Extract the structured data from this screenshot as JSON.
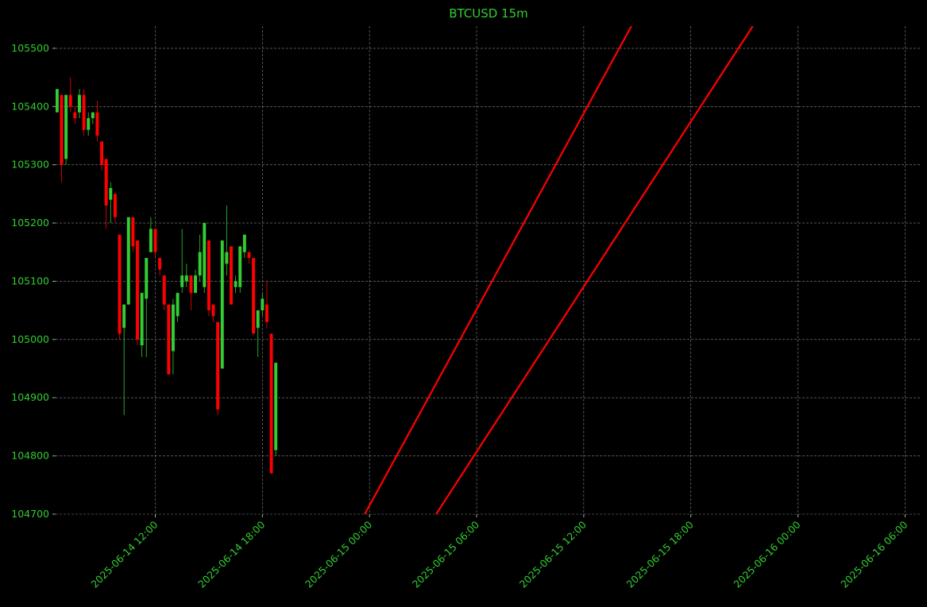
{
  "chart_data": {
    "type": "candlestick",
    "title": "BTCUSD 15m",
    "x": [
      "2025-06-14 06:30",
      "2025-06-14 06:45",
      "2025-06-14 07:00",
      "2025-06-14 07:15",
      "2025-06-14 07:30",
      "2025-06-14 07:45",
      "2025-06-14 08:00",
      "2025-06-14 08:15",
      "2025-06-14 08:30",
      "2025-06-14 08:45",
      "2025-06-14 09:00",
      "2025-06-14 09:15",
      "2025-06-14 09:30",
      "2025-06-14 09:45",
      "2025-06-14 10:00",
      "2025-06-14 10:15",
      "2025-06-14 10:30",
      "2025-06-14 10:45",
      "2025-06-14 11:00",
      "2025-06-14 11:15",
      "2025-06-14 11:30",
      "2025-06-14 11:45",
      "2025-06-14 12:00",
      "2025-06-14 12:15",
      "2025-06-14 12:30",
      "2025-06-14 12:45",
      "2025-06-14 13:00",
      "2025-06-14 13:15",
      "2025-06-14 13:30",
      "2025-06-14 13:45",
      "2025-06-14 14:00",
      "2025-06-14 14:15",
      "2025-06-14 14:30",
      "2025-06-14 14:45",
      "2025-06-14 15:00",
      "2025-06-14 15:15",
      "2025-06-14 15:30",
      "2025-06-14 15:45",
      "2025-06-14 16:00",
      "2025-06-14 16:15",
      "2025-06-14 16:30",
      "2025-06-14 16:45",
      "2025-06-14 17:00",
      "2025-06-14 17:15",
      "2025-06-14 17:30",
      "2025-06-14 17:45",
      "2025-06-14 18:00",
      "2025-06-14 18:15",
      "2025-06-14 18:30",
      "2025-06-14 18:45"
    ],
    "open": [
      105390,
      105420,
      105310,
      105420,
      105390,
      105390,
      105420,
      105360,
      105380,
      105390,
      105340,
      105310,
      105240,
      105250,
      105180,
      105020,
      105060,
      105210,
      105170,
      104990,
      105070,
      105150,
      105190,
      105140,
      105110,
      105060,
      104980,
      105040,
      105090,
      105100,
      105110,
      105080,
      105110,
      105090,
      105170,
      105060,
      105030,
      104950,
      105130,
      105160,
      105090,
      105090,
      105150,
      105150,
      105140,
      105020,
      105050,
      105060,
      105010,
      104810
    ],
    "high": [
      105430,
      105420,
      105420,
      105450,
      105400,
      105430,
      105430,
      105390,
      105390,
      105410,
      105340,
      105310,
      105270,
      105250,
      105180,
      105060,
      105210,
      105210,
      105170,
      105080,
      105140,
      105210,
      105190,
      105140,
      105110,
      105060,
      105070,
      105080,
      105190,
      105130,
      105110,
      105120,
      105180,
      105200,
      105170,
      105060,
      105030,
      105170,
      105230,
      105160,
      105110,
      105160,
      105180,
      105150,
      105140,
      105050,
      105080,
      105100,
      105010,
      104960
    ],
    "low": [
      105390,
      105270,
      105300,
      105390,
      105370,
      105380,
      105350,
      105350,
      105370,
      105340,
      105290,
      105190,
      105200,
      105200,
      105000,
      104870,
      105060,
      105150,
      104990,
      104970,
      104970,
      105150,
      105140,
      105110,
      105050,
      104940,
      104940,
      105030,
      105080,
      105090,
      105050,
      105080,
      105100,
      105080,
      105040,
      105030,
      104870,
      104950,
      105110,
      105060,
      105080,
      105080,
      105140,
      105130,
      105010,
      104970,
      105040,
      105020,
      104770,
      104800
    ],
    "close": [
      105430,
      105300,
      105420,
      105400,
      105380,
      105420,
      105360,
      105380,
      105390,
      105350,
      105300,
      105230,
      105260,
      105210,
      105010,
      105060,
      105210,
      105160,
      105000,
      105080,
      105140,
      105190,
      105150,
      105120,
      105060,
      104940,
      105060,
      105080,
      105110,
      105110,
      105080,
      105110,
      105150,
      105200,
      105050,
      105040,
      104880,
      105170,
      105150,
      105060,
      105100,
      105160,
      105180,
      105140,
      105010,
      105050,
      105070,
      105030,
      104770,
      104960
    ],
    "up_color": "#32cd32",
    "down_color": "#ff0000",
    "lines": [
      {
        "color": "#ff0000",
        "x": [
          "2025-06-14 23:44",
          "2025-06-15 14:40"
        ],
        "values": [
          104700,
          105538
        ]
      },
      {
        "color": "#ff0000",
        "x": [
          "2025-06-15 03:44",
          "2025-06-15 21:28"
        ],
        "values": [
          104700,
          105538
        ]
      }
    ],
    "xlim": [
      "2025-06-14 06:25",
      "2025-06-16 06:55"
    ],
    "xticks": [
      "2025-06-14 12:00",
      "2025-06-14 18:00",
      "2025-06-15 00:00",
      "2025-06-15 06:00",
      "2025-06-15 12:00",
      "2025-06-15 18:00",
      "2025-06-16 00:00",
      "2025-06-16 06:00"
    ],
    "ylim": [
      104700,
      105538
    ],
    "yticks": [
      104700,
      104800,
      104900,
      105000,
      105100,
      105200,
      105300,
      105400,
      105500
    ],
    "grid": true
  }
}
